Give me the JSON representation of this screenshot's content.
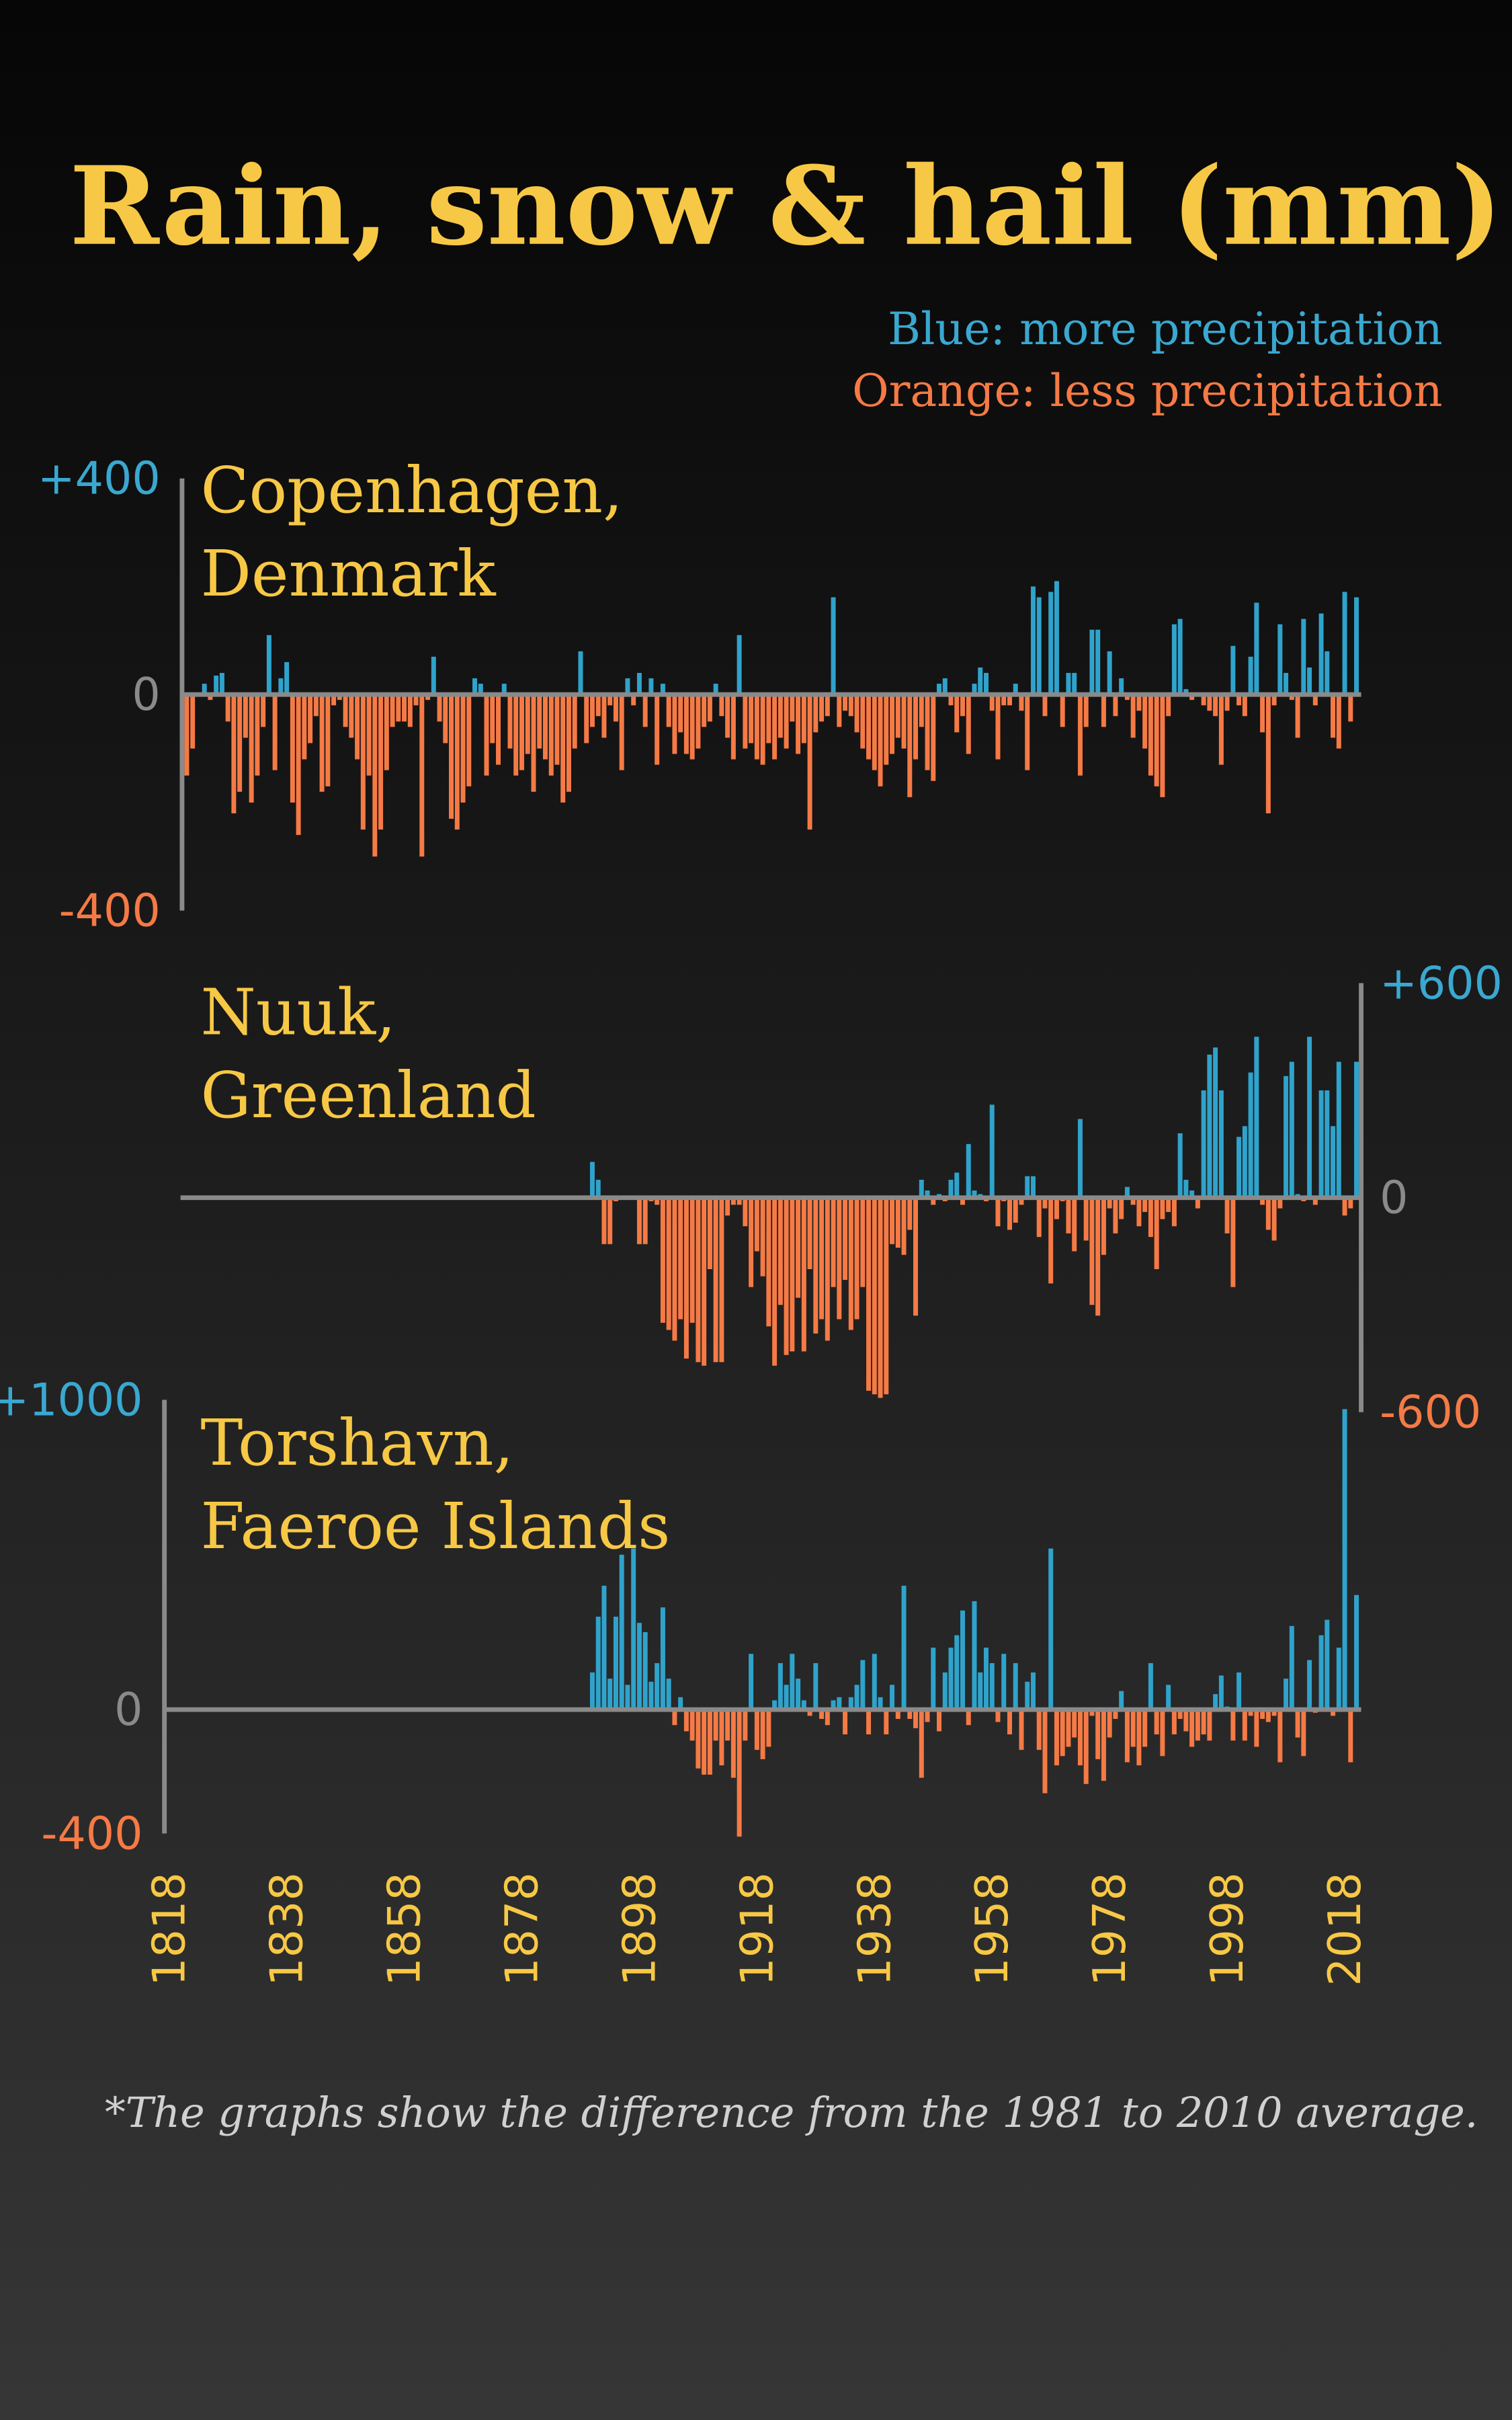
{
  "title": "Rain, snow & hail (mm)",
  "legend": [
    "Blue: more precipitation",
    "Orange: less precipitation"
  ],
  "note": "*The graphs show the difference from the 1981 to 2010 average.",
  "chart_data": [
    {
      "type": "bar",
      "name": [
        "Copenhagen,",
        "Denmark"
      ],
      "axis_side": "left",
      "positive_color": "#2fa3cb",
      "negative_color": "#f57a45",
      "xlim": [
        1816,
        2021
      ],
      "ylim": [
        -400,
        400
      ],
      "yticks": [
        {
          "value": -400,
          "label": "-400"
        },
        0,
        {
          "value": 400,
          "label": "+400"
        }
      ],
      "x": [
        1821,
        1822,
        1823,
        1824,
        1825,
        1826,
        1827,
        1828,
        1829,
        1830,
        1831,
        1832,
        1833,
        1834,
        1835,
        1836,
        1837,
        1838,
        1839,
        1840,
        1841,
        1842,
        1843,
        1844,
        1845,
        1846,
        1847,
        1848,
        1849,
        1850,
        1851,
        1852,
        1853,
        1854,
        1855,
        1856,
        1857,
        1858,
        1859,
        1860,
        1861,
        1862,
        1863,
        1864,
        1865,
        1866,
        1867,
        1868,
        1869,
        1870,
        1871,
        1872,
        1873,
        1874,
        1875,
        1876,
        1877,
        1878,
        1879,
        1880,
        1881,
        1882,
        1883,
        1884,
        1885,
        1886,
        1887,
        1888,
        1889,
        1890,
        1891,
        1892,
        1893,
        1894,
        1895,
        1896,
        1897,
        1898,
        1899,
        1900,
        1901,
        1902,
        1903,
        1904,
        1905,
        1906,
        1907,
        1908,
        1909,
        1910,
        1911,
        1912,
        1913,
        1914,
        1915,
        1916,
        1917,
        1918,
        1919,
        1920,
        1921,
        1922,
        1923,
        1924,
        1925,
        1926,
        1927,
        1928,
        1929,
        1930,
        1931,
        1932,
        1933,
        1934,
        1935,
        1936,
        1937,
        1938,
        1939,
        1940,
        1941,
        1942,
        1943,
        1944,
        1945,
        1946,
        1947,
        1948,
        1949,
        1950,
        1951,
        1952,
        1953,
        1954,
        1955,
        1956,
        1957,
        1958,
        1959,
        1960,
        1961,
        1962,
        1963,
        1964,
        1965,
        1966,
        1967,
        1968,
        1969,
        1970,
        1971,
        1972,
        1973,
        1974,
        1975,
        1976,
        1977,
        1978,
        1979,
        1980,
        1981,
        1982,
        1983,
        1984,
        1985,
        1986,
        1987,
        1988,
        1989,
        1990,
        1991,
        1992,
        1993,
        1994,
        1995,
        1996,
        1997,
        1998,
        1999,
        2000,
        2001,
        2002,
        2003,
        2004,
        2005,
        2006,
        2007,
        2008,
        2009,
        2010,
        2011,
        2012,
        2013,
        2014,
        2015,
        2016,
        2017,
        2018,
        2019,
        2020
      ],
      "values": [
        -150,
        -100,
        0,
        20,
        -10,
        35,
        40,
        -50,
        -220,
        -180,
        -80,
        -200,
        -150,
        -60,
        110,
        -140,
        30,
        60,
        -200,
        -260,
        -120,
        -90,
        -40,
        -180,
        -170,
        -20,
        -10,
        -60,
        -80,
        -120,
        -250,
        -150,
        -300,
        -250,
        -140,
        -60,
        -50,
        -50,
        -60,
        -20,
        -300,
        -10,
        70,
        -50,
        -90,
        -230,
        -250,
        -200,
        -170,
        30,
        20,
        -150,
        -90,
        -130,
        20,
        -100,
        -150,
        -140,
        -110,
        -180,
        -100,
        -120,
        -150,
        -130,
        -200,
        -180,
        -100,
        80,
        -90,
        -60,
        -40,
        -80,
        -20,
        -50,
        -140,
        30,
        -20,
        40,
        -60,
        30,
        -130,
        20,
        -60,
        -110,
        -70,
        -110,
        -120,
        -100,
        -60,
        -50,
        20,
        -40,
        -80,
        -120,
        110,
        -100,
        -90,
        -120,
        -130,
        -90,
        -120,
        -80,
        -100,
        -50,
        -110,
        -90,
        -250,
        -70,
        -50,
        -40,
        180,
        -60,
        -30,
        -40,
        -70,
        -100,
        -120,
        -140,
        -170,
        -130,
        -110,
        -80,
        -100,
        -190,
        -120,
        -60,
        -140,
        -160,
        20,
        30,
        -20,
        -70,
        -40,
        -110,
        20,
        50,
        40,
        -30,
        -120,
        -20,
        -20,
        20,
        -30,
        -140,
        200,
        180,
        -40,
        190,
        210,
        -60,
        40,
        40,
        -150,
        -60,
        120,
        120,
        -60,
        80,
        -40,
        30,
        -10,
        -80,
        -30,
        -100,
        -150,
        -170,
        -190,
        -40,
        130,
        140,
        10,
        -10,
        0,
        -20,
        -30,
        -40,
        -130,
        -30,
        90,
        -20,
        -40,
        70,
        170,
        -70,
        -220,
        -20,
        130,
        40,
        -10,
        -80,
        140,
        50,
        -20,
        150,
        80,
        -80,
        -100,
        190,
        -50,
        180
      ]
    },
    {
      "type": "bar",
      "name": [
        "Nuuk,",
        "Greenland"
      ],
      "axis_side": "right",
      "positive_color": "#2fa3cb",
      "negative_color": "#f57a45",
      "xlim": [
        1816,
        2021
      ],
      "ylim": [
        -600,
        600
      ],
      "yticks": [
        {
          "value": -600,
          "label": "-600"
        },
        0,
        {
          "value": 600,
          "label": "+600"
        }
      ],
      "x": [
        1890,
        1891,
        1892,
        1893,
        1894,
        1895,
        1896,
        1897,
        1898,
        1899,
        1900,
        1901,
        1902,
        1903,
        1904,
        1905,
        1906,
        1907,
        1908,
        1909,
        1910,
        1911,
        1912,
        1913,
        1914,
        1915,
        1916,
        1917,
        1918,
        1919,
        1920,
        1921,
        1922,
        1923,
        1924,
        1925,
        1926,
        1927,
        1928,
        1929,
        1930,
        1931,
        1932,
        1933,
        1934,
        1935,
        1936,
        1937,
        1938,
        1939,
        1940,
        1941,
        1942,
        1943,
        1944,
        1945,
        1946,
        1947,
        1948,
        1949,
        1950,
        1951,
        1952,
        1953,
        1954,
        1955,
        1956,
        1957,
        1958,
        1959,
        1960,
        1961,
        1962,
        1963,
        1964,
        1965,
        1966,
        1967,
        1968,
        1969,
        1970,
        1971,
        1972,
        1973,
        1974,
        1975,
        1976,
        1977,
        1978,
        1979,
        1980,
        1981,
        1982,
        1983,
        1984,
        1985,
        1986,
        1987,
        1988,
        1989,
        1990,
        1991,
        1992,
        1993,
        1994,
        1995,
        1996,
        1997,
        1998,
        1999,
        2000,
        2001,
        2002,
        2003,
        2004,
        2005,
        2006,
        2007,
        2008,
        2009,
        2010,
        2011,
        2012,
        2013,
        2014,
        2015,
        2016,
        2017,
        2018,
        2019,
        2020
      ],
      "values": [
        100,
        50,
        -130,
        -130,
        -10,
        0,
        0,
        0,
        -130,
        -130,
        -10,
        -20,
        -350,
        -370,
        -400,
        -340,
        -450,
        -350,
        -460,
        -470,
        -200,
        -460,
        -460,
        -50,
        -20,
        -20,
        -80,
        -250,
        -150,
        -220,
        -360,
        -470,
        -300,
        -440,
        -430,
        -280,
        -430,
        -200,
        -380,
        -340,
        -400,
        -250,
        -340,
        -230,
        -370,
        -340,
        -250,
        -540,
        -550,
        -560,
        -550,
        -130,
        -140,
        -160,
        -90,
        -330,
        50,
        20,
        -20,
        10,
        -10,
        50,
        70,
        -20,
        150,
        20,
        10,
        -10,
        260,
        -80,
        -10,
        -90,
        -70,
        -20,
        60,
        60,
        -110,
        -30,
        -240,
        -60,
        -10,
        -100,
        -150,
        220,
        -120,
        -300,
        -330,
        -160,
        -30,
        -100,
        -60,
        30,
        -20,
        -80,
        -40,
        -110,
        -200,
        -60,
        -40,
        -80,
        180,
        50,
        20,
        -30,
        300,
        400,
        420,
        300,
        -100,
        -250,
        170,
        200,
        350,
        450,
        -20,
        -90,
        -120,
        -30,
        340,
        380,
        10,
        -10,
        450,
        -20,
        300,
        300,
        200,
        380,
        -50,
        -30,
        380
      ]
    },
    {
      "type": "bar",
      "name": [
        "Torshavn,",
        "Faeroe Islands"
      ],
      "axis_side": "left",
      "positive_color": "#2fa3cb",
      "negative_color": "#f57a45",
      "xlim": [
        1816,
        2021
      ],
      "ylim": [
        -400,
        1000
      ],
      "yticks": [
        {
          "value": -400,
          "label": "-400"
        },
        0,
        {
          "value": 1000,
          "label": "+1000"
        }
      ],
      "xticks": [
        1818,
        1838,
        1858,
        1878,
        1898,
        1918,
        1938,
        1958,
        1978,
        1998,
        2018
      ],
      "x": [
        1890,
        1891,
        1892,
        1893,
        1894,
        1895,
        1896,
        1897,
        1898,
        1899,
        1900,
        1901,
        1902,
        1903,
        1904,
        1905,
        1906,
        1907,
        1908,
        1909,
        1910,
        1911,
        1912,
        1913,
        1914,
        1915,
        1916,
        1917,
        1918,
        1919,
        1920,
        1921,
        1922,
        1923,
        1924,
        1925,
        1926,
        1927,
        1928,
        1929,
        1930,
        1931,
        1932,
        1933,
        1934,
        1935,
        1936,
        1937,
        1938,
        1939,
        1940,
        1941,
        1942,
        1943,
        1944,
        1945,
        1946,
        1947,
        1948,
        1949,
        1950,
        1951,
        1952,
        1953,
        1954,
        1955,
        1956,
        1957,
        1958,
        1959,
        1960,
        1961,
        1962,
        1963,
        1964,
        1965,
        1966,
        1967,
        1968,
        1969,
        1970,
        1971,
        1972,
        1973,
        1974,
        1975,
        1976,
        1977,
        1978,
        1979,
        1980,
        1981,
        1982,
        1983,
        1984,
        1985,
        1986,
        1987,
        1988,
        1989,
        1990,
        1991,
        1992,
        1993,
        1994,
        1995,
        1996,
        1997,
        1998,
        1999,
        2000,
        2001,
        2002,
        2003,
        2004,
        2005,
        2006,
        2007,
        2008,
        2009,
        2010,
        2011,
        2012,
        2013,
        2014,
        2015,
        2016,
        2017,
        2018,
        2019,
        2020
      ],
      "values": [
        120,
        300,
        400,
        100,
        300,
        500,
        80,
        520,
        280,
        250,
        90,
        150,
        330,
        100,
        -50,
        40,
        -70,
        -100,
        -190,
        -210,
        -210,
        -100,
        -180,
        -100,
        -220,
        -410,
        -100,
        180,
        -130,
        -160,
        -120,
        30,
        150,
        80,
        180,
        100,
        30,
        -20,
        150,
        -30,
        -50,
        30,
        40,
        -80,
        40,
        80,
        160,
        -80,
        180,
        40,
        -80,
        80,
        -30,
        400,
        -30,
        -60,
        -220,
        -40,
        200,
        -70,
        120,
        200,
        240,
        320,
        -50,
        350,
        120,
        200,
        150,
        -40,
        180,
        -80,
        150,
        -130,
        90,
        120,
        -130,
        -270,
        520,
        -180,
        -150,
        -120,
        -90,
        -180,
        -240,
        -20,
        -160,
        -230,
        -90,
        -30,
        60,
        -170,
        -120,
        -180,
        -120,
        150,
        -80,
        -150,
        80,
        -80,
        -30,
        -70,
        -120,
        -100,
        -80,
        -100,
        50,
        110,
        10,
        -100,
        120,
        -100,
        -20,
        -120,
        -30,
        -40,
        -20,
        -170,
        100,
        270,
        -90,
        -150,
        160,
        -10,
        240,
        290,
        -20,
        200,
        970,
        -170,
        370
      ]
    }
  ]
}
